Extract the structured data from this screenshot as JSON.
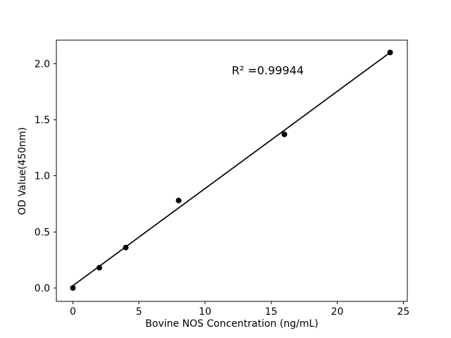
{
  "figure": {
    "background_color": "#ffffff",
    "foreground_color": "#000000"
  },
  "chart_data": {
    "type": "scatter",
    "title": "",
    "xlabel": "Bovine NOS Concentration (ng/mL)",
    "ylabel": "OD Value(450nm)",
    "x": [
      0,
      2,
      4,
      8,
      16,
      24
    ],
    "y": [
      0.0,
      0.18,
      0.36,
      0.78,
      1.37,
      2.1
    ],
    "fit_line": {
      "x": [
        0,
        24
      ],
      "y": [
        0.02,
        2.1
      ]
    },
    "r_squared": 0.99944,
    "annotation": {
      "text": "R² =0.99944"
    },
    "x_tick_values": [
      0,
      5,
      10,
      15,
      20,
      25
    ],
    "x_tick_labels": [
      "0",
      "5",
      "10",
      "15",
      "20",
      "25"
    ],
    "y_tick_values": [
      0.0,
      0.5,
      1.0,
      1.5,
      2.0
    ],
    "y_tick_labels": [
      "0.0",
      "0.5",
      "1.0",
      "1.5",
      "2.0"
    ],
    "xlim": [
      -1.25,
      25.3
    ],
    "ylim": [
      -0.12,
      2.21
    ],
    "grid": false,
    "legend": null,
    "marker_color": "#000000",
    "line_color": "#000000",
    "axis_color": "#000000"
  }
}
